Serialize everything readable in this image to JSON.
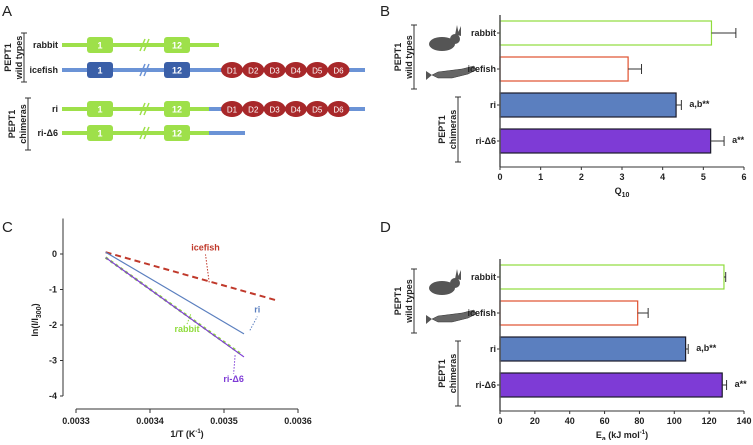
{
  "panels": {
    "a": "A",
    "b": "B",
    "c": "C",
    "d": "D"
  },
  "groups": {
    "wild": [
      "PEPT1",
      "wild types"
    ],
    "chim": [
      "PEPT1",
      "chimeras"
    ]
  },
  "diagram": {
    "rows": [
      {
        "label": "rabbit",
        "tm_color": "#9ee04a",
        "line_color": "#9ee04a",
        "domains": false,
        "tail": null
      },
      {
        "label": "icefish",
        "tm_color": "#3a5fa8",
        "line_color": "#6b93d6",
        "domains": true,
        "tail": null
      },
      {
        "label": "ri",
        "tm_color": "#9ee04a",
        "line_color": "#9ee04a",
        "domains": true,
        "tail": "#6b93d6"
      },
      {
        "label": "ri-Δ6",
        "tm_color": "#9ee04a",
        "line_color": "#9ee04a",
        "domains": false,
        "tail": "#6b93d6"
      }
    ],
    "tm_labels": [
      "1",
      "12"
    ],
    "domain_labels": [
      "D1",
      "D2",
      "D3",
      "D4",
      "D5",
      "D6"
    ],
    "domain_color": "#a8282a"
  },
  "chart_data": [
    {
      "panel": "B",
      "type": "bar",
      "orientation": "horizontal",
      "categories": [
        "rabbit",
        "icefish",
        "ri",
        "ri-Δ6"
      ],
      "values": [
        5.2,
        3.15,
        4.33,
        5.18
      ],
      "errors": [
        0.6,
        0.33,
        0.13,
        0.33
      ],
      "annotations": [
        "",
        "",
        "a,b**",
        "a**"
      ],
      "fills": [
        "#ffffff",
        "#ffffff",
        "#5b7fbf",
        "#7e3bd6"
      ],
      "strokes": [
        "#8fdc3c",
        "#e0502e",
        "#1a1a2a",
        "#1a1a2a"
      ],
      "xlabel": "Q",
      "xlabel_sub": "10",
      "xlim": [
        0,
        6
      ],
      "ticks": [
        "0",
        "1",
        "2",
        "3",
        "4",
        "5",
        "6"
      ]
    },
    {
      "panel": "C",
      "type": "line",
      "xlabel": "1/T (K",
      "xlabel_sup": "-1",
      "xlabel_end": ")",
      "ylabel": "ln(I/I",
      "ylabel_sub": "300",
      "ylabel_end": ")",
      "xlim": [
        0.0033,
        0.0036
      ],
      "ylim": [
        -4,
        1
      ],
      "xticks": [
        "0.0033",
        "0.0034",
        "0.0035",
        "0.0036"
      ],
      "yticks": [
        "0",
        "-1",
        "-2",
        "-3",
        "-4"
      ],
      "series": [
        {
          "name": "icefish",
          "x": [
            0.00334,
            0.00357
          ],
          "y": [
            0.05,
            -1.3
          ],
          "color": "#c0392b",
          "dash": "6,4"
        },
        {
          "name": "ri",
          "x": [
            0.00334,
            0.003527
          ],
          "y": [
            0.05,
            -2.25
          ],
          "color": "#5b7fbf",
          "dash": ""
        },
        {
          "name": "rabbit",
          "x": [
            0.00334,
            0.003525
          ],
          "y": [
            -0.1,
            -2.85
          ],
          "color": "#8fdc3c",
          "dash": "3,3"
        },
        {
          "name": "ri-Δ6",
          "x": [
            0.00334,
            0.003527
          ],
          "y": [
            -0.1,
            -2.9
          ],
          "color": "#7e3bd6",
          "dash": ""
        }
      ]
    },
    {
      "panel": "D",
      "type": "bar",
      "orientation": "horizontal",
      "categories": [
        "rabbit",
        "icefish",
        "ri",
        "ri-Δ6"
      ],
      "values": [
        128.5,
        79,
        106.5,
        127.5
      ],
      "errors": [
        1,
        6,
        1.5,
        2.5
      ],
      "annotations": [
        "",
        "",
        "a,b**",
        "a**"
      ],
      "fills": [
        "#ffffff",
        "#ffffff",
        "#5b7fbf",
        "#7e3bd6"
      ],
      "strokes": [
        "#8fdc3c",
        "#e0502e",
        "#1a1a2a",
        "#1a1a2a"
      ],
      "xlabel": "E",
      "xlabel_sub": "a",
      "xlabel_end": " (kJ mol",
      "xlabel_sup": "-1",
      "xlabel_close": ")",
      "xlim": [
        0,
        140
      ],
      "ticks": [
        "0",
        "20",
        "40",
        "60",
        "80",
        "100",
        "120",
        "140"
      ]
    }
  ]
}
